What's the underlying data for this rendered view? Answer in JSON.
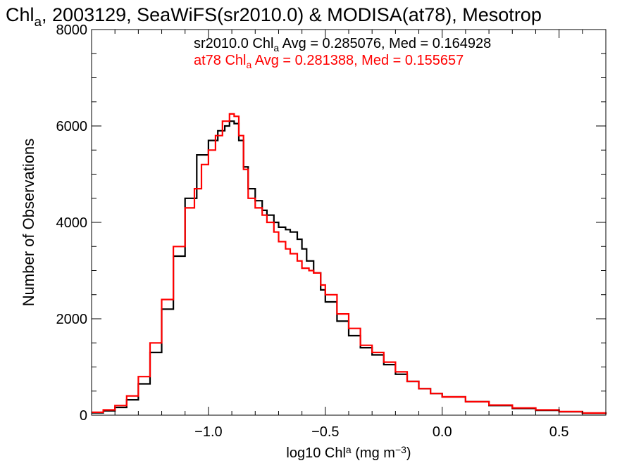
{
  "chart_data": {
    "type": "line",
    "title_parts": [
      "Chl",
      "a",
      ", 2003129, SeaWiFS(sr2010.0) & MODISA(at78), Mesotrop"
    ],
    "xlabel_parts": [
      "log10 Chl",
      "a",
      " (mg m",
      "−3",
      ")"
    ],
    "ylabel": "Number of Observations",
    "xlim": [
      -1.5,
      0.7
    ],
    "ylim": [
      0,
      8000
    ],
    "x_ticks": [
      {
        "value": -1.0,
        "label": "−1.0"
      },
      {
        "value": -0.5,
        "label": "−0.5"
      },
      {
        "value": 0.0,
        "label": "0.0"
      },
      {
        "value": 0.5,
        "label": "0.5"
      }
    ],
    "y_ticks": [
      {
        "value": 0,
        "label": "0"
      },
      {
        "value": 2000,
        "label": "2000"
      },
      {
        "value": 4000,
        "label": "4000"
      },
      {
        "value": 6000,
        "label": "6000"
      },
      {
        "value": 8000,
        "label": "8000"
      }
    ],
    "annotations": [
      {
        "parts": [
          "sr2010.0 Chl",
          "a",
          " Avg = 0.285076, Med = 0.164928"
        ],
        "color": "#000000"
      },
      {
        "parts": [
          "at78 Chl",
          "a",
          " Avg = 0.281388, Med = 0.155657"
        ],
        "color": "#ff0000"
      }
    ],
    "series": [
      {
        "color": "#000000",
        "x": [
          -1.5,
          -1.45,
          -1.4,
          -1.35,
          -1.3,
          -1.25,
          -1.2,
          -1.15,
          -1.1,
          -1.05,
          -1.0,
          -0.96,
          -0.93,
          -0.91,
          -0.89,
          -0.87,
          -0.85,
          -0.83,
          -0.8,
          -0.77,
          -0.75,
          -0.72,
          -0.7,
          -0.67,
          -0.65,
          -0.62,
          -0.6,
          -0.58,
          -0.55,
          -0.52,
          -0.5,
          -0.45,
          -0.4,
          -0.35,
          -0.3,
          -0.25,
          -0.2,
          -0.15,
          -0.1,
          -0.05,
          0.0,
          0.1,
          0.2,
          0.3,
          0.4,
          0.5,
          0.6,
          0.7
        ],
        "values": [
          50,
          90,
          160,
          320,
          650,
          1300,
          2200,
          3300,
          4500,
          5400,
          5700,
          5900,
          6000,
          6100,
          6050,
          5700,
          5150,
          4700,
          4450,
          4250,
          4150,
          4000,
          3900,
          3850,
          3800,
          3650,
          3450,
          3200,
          2950,
          2600,
          2350,
          1950,
          1650,
          1400,
          1250,
          1050,
          850,
          700,
          550,
          450,
          380,
          280,
          200,
          140,
          100,
          70,
          40,
          20
        ]
      },
      {
        "color": "#ff0000",
        "x": [
          -1.5,
          -1.45,
          -1.4,
          -1.35,
          -1.3,
          -1.25,
          -1.2,
          -1.15,
          -1.1,
          -1.06,
          -1.03,
          -1.0,
          -0.97,
          -0.94,
          -0.91,
          -0.89,
          -0.87,
          -0.85,
          -0.83,
          -0.8,
          -0.77,
          -0.75,
          -0.72,
          -0.7,
          -0.67,
          -0.65,
          -0.62,
          -0.6,
          -0.57,
          -0.55,
          -0.52,
          -0.5,
          -0.45,
          -0.4,
          -0.35,
          -0.3,
          -0.25,
          -0.2,
          -0.15,
          -0.1,
          -0.05,
          0.0,
          0.1,
          0.2,
          0.3,
          0.4,
          0.5,
          0.6,
          0.7
        ],
        "values": [
          60,
          110,
          200,
          400,
          800,
          1500,
          2400,
          3500,
          4300,
          4700,
          5200,
          5500,
          5800,
          6100,
          6250,
          6200,
          5800,
          5100,
          4500,
          4300,
          4150,
          4000,
          3800,
          3600,
          3450,
          3350,
          3200,
          3050,
          3000,
          2950,
          2700,
          2500,
          2100,
          1800,
          1450,
          1300,
          1100,
          900,
          700,
          550,
          450,
          380,
          280,
          210,
          150,
          110,
          75,
          45,
          20
        ]
      }
    ]
  }
}
